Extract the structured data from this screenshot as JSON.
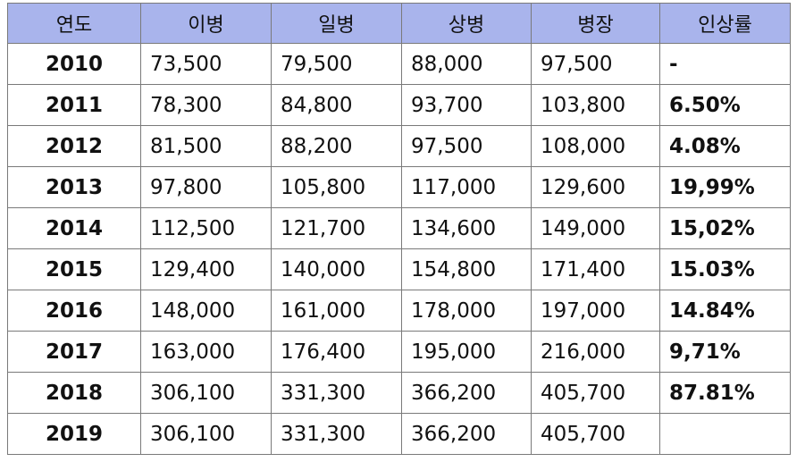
{
  "table": {
    "headers": [
      "연도",
      "이병",
      "일병",
      "상병",
      "병장",
      "인상률"
    ],
    "rows": [
      [
        "2010",
        "73,500",
        "79,500",
        "88,000",
        "97,500",
        "-"
      ],
      [
        "2011",
        "78,300",
        "84,800",
        "93,700",
        "103,800",
        "6.50%"
      ],
      [
        "2012",
        "81,500",
        "88,200",
        "97,500",
        "108,000",
        "4.08%"
      ],
      [
        "2013",
        "97,800",
        "105,800",
        "117,000",
        "129,600",
        "19,99%"
      ],
      [
        "2014",
        "112,500",
        "121,700",
        "134,600",
        "149,000",
        "15,02%"
      ],
      [
        "2015",
        "129,400",
        "140,000",
        "154,800",
        "171,400",
        "15.03%"
      ],
      [
        "2016",
        "148,000",
        "161,000",
        "178,000",
        "197,000",
        "14.84%"
      ],
      [
        "2017",
        "163,000",
        "176,400",
        "195,000",
        "216,000",
        "9,71%"
      ],
      [
        "2018",
        "306,100",
        "331,300",
        "366,200",
        "405,700",
        "87.81%"
      ],
      [
        "2019",
        "306,100",
        "331,300",
        "366,200",
        "405,700",
        ""
      ]
    ]
  }
}
